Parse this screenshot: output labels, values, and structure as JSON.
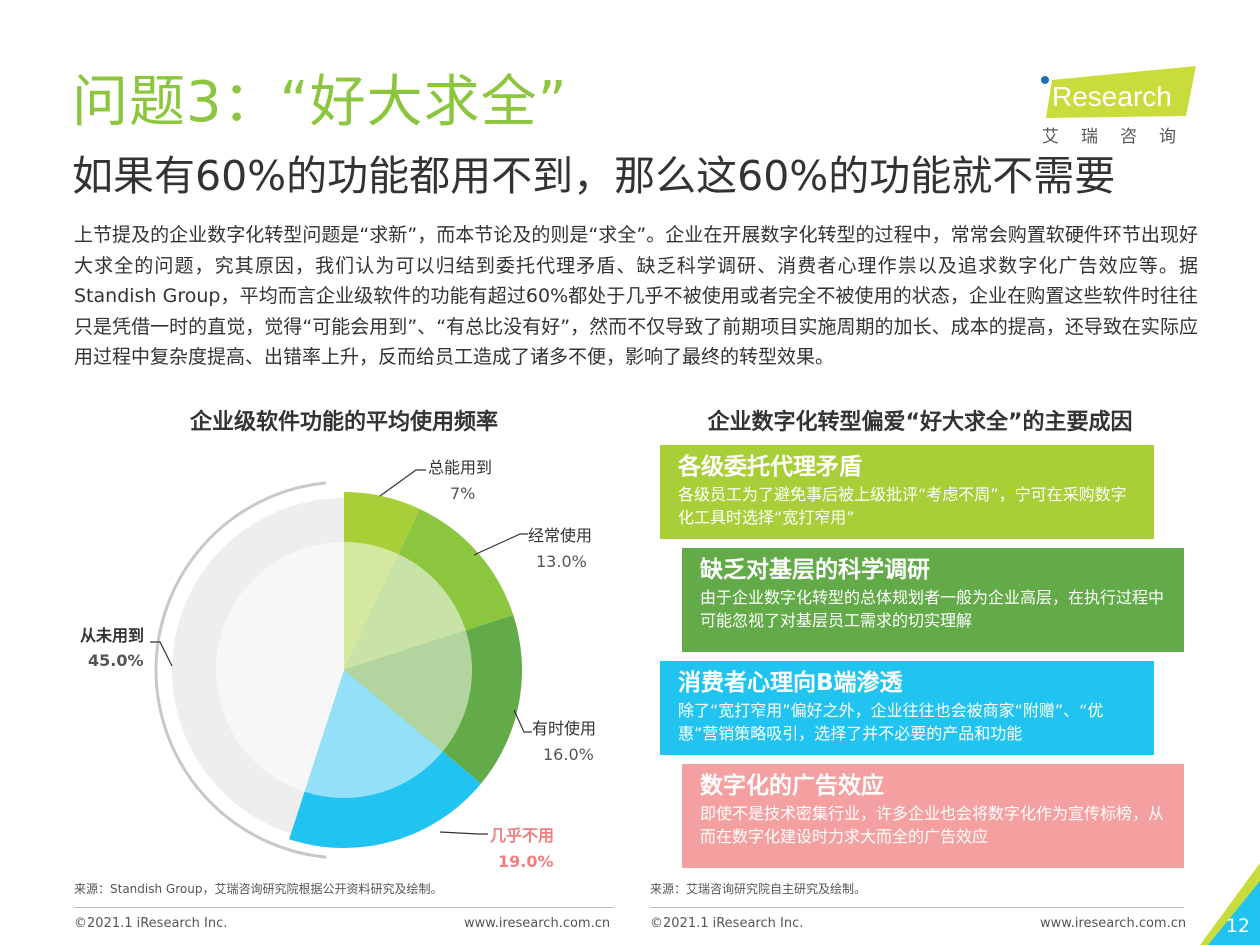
{
  "header": {
    "title": "问题3：“好大求全”",
    "subtitle": "如果有60%的功能都用不到，那么这60%的功能就不需要"
  },
  "logo": {
    "brand_i": "i",
    "brand_rest": "Research",
    "cn": "艾瑞咨询",
    "accent": "#c8dc3c"
  },
  "body": {
    "paragraph": "上节提及的企业数字化转型问题是“求新”，而本节论及的则是“求全”。企业在开展数字化转型的过程中，常常会购置软硬件环节出现好大求全的问题，究其原因，我们认为可以归结到委托代理矛盾、缺乏科学调研、消费者心理作祟以及追求数字化广告效应等。据Standish Group，平均而言企业级软件的功能有超过60%都处于几乎不被使用或者完全不被使用的状态，企业在购置这些软件时往往只是凭借一时的直觉，觉得“可能会用到”、“有总比没有好”，然而不仅导致了前期项目实施周期的加长、成本的提高，还导致在实际应用过程中复杂度提高、出错率上升，反而给员工造成了诸多不便，影响了最终的转型效果。"
  },
  "chart_data": {
    "type": "pie",
    "title": "企业级软件功能的平均使用频率",
    "slices": [
      {
        "label": "总能用到",
        "value": 7,
        "display": "7%",
        "color": "#a8cf38",
        "inner": "#d4e8a0"
      },
      {
        "label": "经常使用",
        "value": 13,
        "display": "13.0%",
        "color": "#8cc63f",
        "inner": "#c9e2a8"
      },
      {
        "label": "有时使用",
        "value": 16,
        "display": "16.0%",
        "color": "#62ab48",
        "inner": "#b2d49e"
      },
      {
        "label": "几乎不用",
        "value": 19,
        "display": "19.0%",
        "color": "#21c4f0",
        "inner": "#93e0f8"
      },
      {
        "label": "从未用到",
        "value": 45,
        "display": "45.0%",
        "color": "#eeeeee",
        "inner": "#f7f7f7"
      }
    ],
    "highlight_color": "#f08080"
  },
  "causes": {
    "title": "企业数字化转型偏爱“好大求全”的主要成因",
    "items": [
      {
        "head": "各级委托代理矛盾",
        "desc": "各级员工为了避免事后被上级批评“考虑不周”，宁可在采购数字化工具时选择“宽打窄用”",
        "color": "#a8cf38"
      },
      {
        "head": "缺乏对基层的科学调研",
        "desc": "由于企业数字化转型的总体规划者一般为企业高层，在执行过程中可能忽视了对基层员工需求的切实理解",
        "color": "#62ab48"
      },
      {
        "head": "消费者心理向B端渗透",
        "desc": "除了“宽打窄用”偏好之外，企业往往也会被商家“附赠”、“优惠”营销策略吸引，选择了并不必要的产品和功能",
        "color": "#21c4f0"
      },
      {
        "head": "数字化的广告效应",
        "desc": "即使不是技术密集行业，许多企业也会将数字化作为宣传标榜，从而在数字化建设时力求大而全的广告效应",
        "color": "#f4a0a0"
      }
    ]
  },
  "sources": {
    "left": "来源：Standish Group，艾瑞咨询研究院根据公开资料研究及绘制。",
    "right": "来源：艾瑞咨询研究院自主研究及绘制。"
  },
  "footer": {
    "copyright_left": "©2021.1 iResearch Inc.",
    "url_left": "www.iresearch.com.cn",
    "copyright_right": "©2021.1 iResearch Inc.",
    "url_right": "www.iresearch.com.cn",
    "page_number": "12",
    "page_color": "#21c4f0"
  }
}
